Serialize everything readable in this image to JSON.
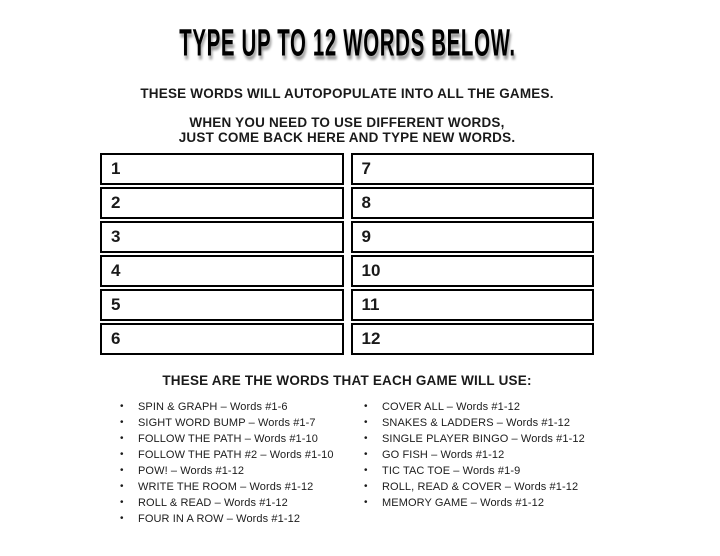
{
  "page": {
    "title": "TYPE UP TO 12 WORDS BELOW.",
    "subtitle": "THESE WORDS WILL AUTOPOPULATE INTO ALL THE GAMES.",
    "instructions_line1": "WHEN YOU NEED TO USE DIFFERENT WORDS,",
    "instructions_line2": "JUST COME BACK HERE AND TYPE NEW WORDS."
  },
  "word_table": {
    "left_numbers": [
      "1",
      "2",
      "3",
      "4",
      "5",
      "6"
    ],
    "right_numbers": [
      "7",
      "8",
      "9",
      "10",
      "11",
      "12"
    ],
    "left_values": [
      "",
      "",
      "",
      "",
      "",
      ""
    ],
    "right_values": [
      "",
      "",
      "",
      "",
      "",
      ""
    ]
  },
  "games_section": {
    "heading": "THESE ARE THE WORDS THAT EACH GAME WILL USE:",
    "bullet_glyph": "•",
    "left_items": [
      "SPIN & GRAPH – Words #1-6",
      "SIGHT WORD BUMP – Words #1-7",
      "FOLLOW THE PATH – Words #1-10",
      "FOLLOW THE PATH #2 – Words #1-10",
      "POW! – Words #1-12",
      "WRITE THE ROOM – Words #1-12",
      "ROLL & READ – Words #1-12",
      "FOUR IN A ROW – Words #1-12"
    ],
    "right_items": [
      "COVER ALL – Words #1-12",
      "SNAKES & LADDERS – Words #1-12",
      "SINGLE PLAYER BINGO – Words #1-12",
      "GO FISH – Words #1-12",
      "TIC TAC TOE – Words #1-9",
      "ROLL, READ & COVER – Words #1-12",
      "MEMORY GAME – Words #1-12"
    ]
  },
  "colors": {
    "background": "#ffffff",
    "text": "#1a1a1a",
    "table_border": "#000000"
  }
}
